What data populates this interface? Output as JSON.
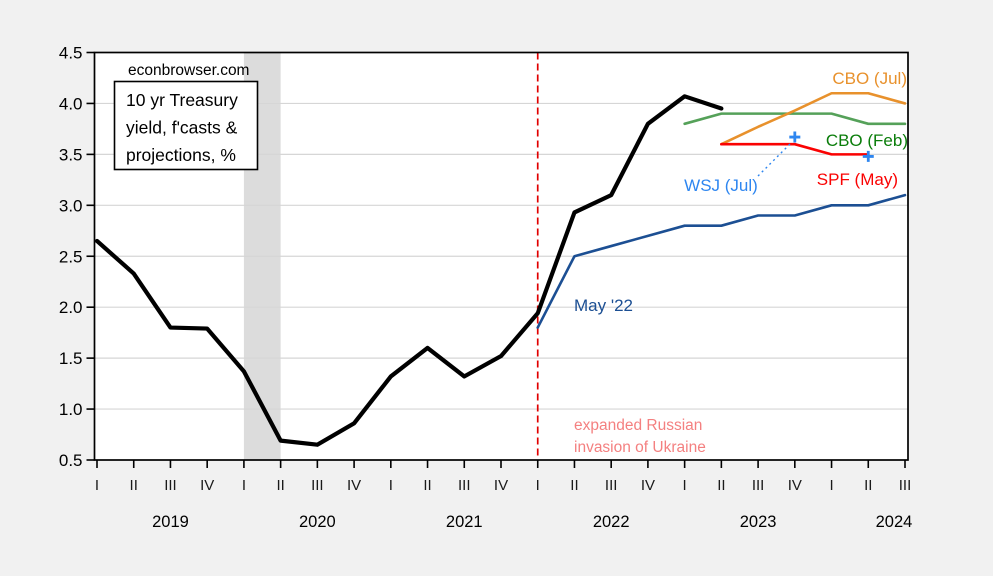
{
  "watermark": "econbrowser.com",
  "chart_data": {
    "type": "line",
    "title_box_lines": [
      "10 yr Treasury",
      "yield, f'casts &",
      "projections, %"
    ],
    "ylim": [
      0.5,
      4.5
    ],
    "y_tick_labels": [
      "0.5",
      "1.0",
      "1.5",
      "2.0",
      "2.5",
      "3.0",
      "3.5",
      "4.0",
      "4.5"
    ],
    "y_tick_values": [
      0.5,
      1.0,
      1.5,
      2.0,
      2.5,
      3.0,
      3.5,
      4.0,
      4.5
    ],
    "gridline_values": [
      1.0,
      1.5,
      2.0,
      2.5,
      3.0,
      3.5,
      4.0
    ],
    "x_quarter_labels": [
      "I",
      "II",
      "III",
      "IV",
      "I",
      "II",
      "III",
      "IV",
      "I",
      "II",
      "III",
      "IV",
      "I",
      "II",
      "III",
      "IV",
      "I",
      "II",
      "III",
      "IV",
      "I",
      "II",
      "III"
    ],
    "year_labels": [
      "2019",
      "2020",
      "2021",
      "2022",
      "2023",
      "2024"
    ],
    "grid_on": true,
    "series": [
      {
        "name": "actual-10yr-treasury-yield",
        "label": "",
        "color": "#000000",
        "width": 4.2,
        "start_quarter": 0,
        "values": [
          2.65,
          2.33,
          1.8,
          1.79,
          1.37,
          0.69,
          0.65,
          0.86,
          1.32,
          1.6,
          1.32,
          1.52,
          1.94,
          2.93,
          3.1,
          3.8,
          4.07,
          3.95
        ]
      },
      {
        "name": "may-22-forecast",
        "label": "May '22",
        "color": "#1c4f93",
        "width": 2.6,
        "start_quarter": 12,
        "values": [
          1.8,
          2.5,
          2.6,
          2.7,
          2.8,
          2.8,
          2.9,
          2.9,
          3.0,
          3.0,
          3.1
        ]
      },
      {
        "name": "cbo-feb-projection",
        "label": "CBO (Feb)",
        "color": "#55a159",
        "label_color": "#0a7d0a",
        "width": 2.6,
        "start_quarter": 16,
        "values": [
          3.8,
          3.9,
          3.9,
          3.9,
          3.9,
          3.8,
          3.8
        ]
      },
      {
        "name": "cbo-jul-projection",
        "label": "CBO (Jul)",
        "color": "#e8912c",
        "label_color": "#e8912c",
        "width": 2.6,
        "start_quarter": 17,
        "values": [
          3.6,
          3.77,
          3.93,
          4.1,
          4.1,
          4.0
        ]
      },
      {
        "name": "spf-may-forecast",
        "label": "SPF (May)",
        "color": "#fa0202",
        "label_color": "#fa0202",
        "width": 2.6,
        "start_quarter": 17,
        "values": [
          3.6,
          3.6,
          3.6,
          3.5,
          3.5
        ]
      }
    ],
    "markers": {
      "name": "wsj-jul-forecast",
      "label": "WSJ (Jul)",
      "color": "#2e86f0",
      "points": [
        {
          "quarter": 19,
          "value": 3.67
        },
        {
          "quarter": 21,
          "value": 3.48
        }
      ]
    },
    "recession_band": {
      "start_quarter": 4,
      "end_quarter": 5,
      "color": "#dcdcdc"
    },
    "event_line": {
      "quarter": 12,
      "color": "#e00000",
      "label_lines": [
        "expanded Russian",
        "invasion of Ukraine"
      ],
      "label_color": "#f48080"
    }
  }
}
